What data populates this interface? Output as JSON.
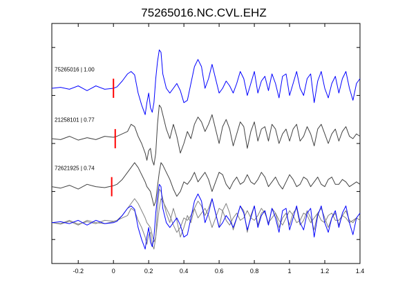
{
  "chart_data": {
    "type": "line",
    "title": "75265016.NC.CVL.EHZ",
    "xlabel": "",
    "ylabel": "",
    "xlim": [
      -0.35,
      1.4
    ],
    "xticks": [
      -0.2,
      0,
      0.2,
      0.4,
      0.6,
      0.8,
      1,
      1.2,
      1.4
    ],
    "xtick_labels": [
      "-0.2",
      "0",
      "0.2",
      "0.4",
      "0.6",
      "0.8",
      "1",
      "1.2",
      "1.4"
    ],
    "ylim": [
      -0.5,
      4.5
    ],
    "yticks": [
      0,
      1,
      2,
      3,
      4
    ],
    "grid": false,
    "legend": "none",
    "colors": {
      "blue": "#0000ff",
      "gray": "#404040",
      "stack_gray": "#808080",
      "pick": "#ff0000",
      "axis": "#000000"
    },
    "pick_half_height": 0.2,
    "series": [
      {
        "name": "75265016 | 1.00",
        "color": "#0000ff",
        "offset": 3.15,
        "pick_time": 0.0,
        "x": [
          -0.35,
          -0.3,
          -0.25,
          -0.2,
          -0.15,
          -0.1,
          -0.05,
          0.0,
          0.02,
          0.05,
          0.08,
          0.1,
          0.12,
          0.14,
          0.16,
          0.18,
          0.19,
          0.2,
          0.21,
          0.22,
          0.23,
          0.24,
          0.25,
          0.26,
          0.27,
          0.28,
          0.3,
          0.32,
          0.34,
          0.36,
          0.38,
          0.4,
          0.42,
          0.44,
          0.46,
          0.48,
          0.5,
          0.52,
          0.54,
          0.56,
          0.58,
          0.6,
          0.62,
          0.64,
          0.66,
          0.68,
          0.7,
          0.72,
          0.74,
          0.76,
          0.78,
          0.8,
          0.82,
          0.84,
          0.86,
          0.88,
          0.9,
          0.92,
          0.94,
          0.96,
          0.98,
          1.0,
          1.02,
          1.04,
          1.06,
          1.08,
          1.1,
          1.12,
          1.14,
          1.16,
          1.18,
          1.2,
          1.22,
          1.24,
          1.26,
          1.28,
          1.3,
          1.32,
          1.34,
          1.36,
          1.38,
          1.4
        ],
        "y": [
          0,
          0.02,
          -0.02,
          0.05,
          -0.05,
          0.05,
          -0.02,
          0,
          0.03,
          0.15,
          0.3,
          0.35,
          0.28,
          -0.1,
          -0.35,
          -0.55,
          -0.3,
          -0.1,
          -0.4,
          -0.5,
          -0.3,
          0.2,
          0.55,
          0.8,
          0.75,
          0.3,
          0.0,
          -0.1,
          0.0,
          0.1,
          -0.05,
          -0.3,
          -0.25,
          0.1,
          0.45,
          0.6,
          0.45,
          0.0,
          0.2,
          0.5,
          0.2,
          -0.1,
          0.0,
          0.15,
          0.05,
          -0.1,
          0.1,
          0.35,
          0.2,
          -0.15,
          0.1,
          0.35,
          -0.1,
          0.15,
          0.25,
          -0.05,
          0.3,
          0.1,
          -0.2,
          0.25,
          0.3,
          -0.15,
          0.1,
          0.35,
          0.0,
          -0.15,
          0.2,
          0.3,
          -0.3,
          0.15,
          0.35,
          0.0,
          -0.2,
          0.1,
          0.25,
          -0.1,
          0.2,
          0.35,
          0.0,
          -0.25,
          0.1,
          0.2
        ]
      },
      {
        "name": "21258101 | 0.77",
        "color": "#404040",
        "offset": 2.1,
        "pick_time": 0.01,
        "x": [
          -0.35,
          -0.3,
          -0.25,
          -0.2,
          -0.15,
          -0.1,
          -0.05,
          0.0,
          0.02,
          0.05,
          0.08,
          0.1,
          0.12,
          0.14,
          0.16,
          0.18,
          0.19,
          0.2,
          0.21,
          0.22,
          0.23,
          0.24,
          0.25,
          0.26,
          0.27,
          0.28,
          0.3,
          0.32,
          0.34,
          0.36,
          0.38,
          0.4,
          0.42,
          0.44,
          0.46,
          0.48,
          0.5,
          0.52,
          0.54,
          0.56,
          0.58,
          0.6,
          0.62,
          0.64,
          0.66,
          0.68,
          0.7,
          0.72,
          0.74,
          0.76,
          0.78,
          0.8,
          0.82,
          0.84,
          0.86,
          0.88,
          0.9,
          0.92,
          0.94,
          0.96,
          0.98,
          1.0,
          1.02,
          1.04,
          1.06,
          1.08,
          1.1,
          1.12,
          1.14,
          1.16,
          1.18,
          1.2,
          1.22,
          1.24,
          1.26,
          1.28,
          1.3,
          1.32,
          1.34,
          1.36,
          1.38,
          1.4
        ],
        "y": [
          0,
          -0.02,
          0.05,
          -0.03,
          0.02,
          -0.02,
          0.05,
          0.03,
          0.05,
          0.1,
          0.15,
          0.3,
          0.25,
          0.05,
          -0.1,
          -0.3,
          -0.45,
          -0.25,
          -0.2,
          -0.45,
          -0.55,
          -0.3,
          0.3,
          0.7,
          0.65,
          0.5,
          0.2,
          0.0,
          0.3,
          0.05,
          -0.3,
          -0.1,
          0.15,
          0.0,
          0.3,
          0.45,
          0.35,
          0.15,
          0.3,
          0.5,
          0.2,
          -0.1,
          0.25,
          0.4,
          0.2,
          -0.15,
          0.1,
          0.35,
          0.25,
          -0.2,
          0.15,
          0.35,
          -0.05,
          0.2,
          0.25,
          -0.05,
          0.3,
          0.2,
          -0.1,
          0.1,
          0.2,
          -0.05,
          0.2,
          0.3,
          -0.05,
          0.05,
          0.25,
          0.1,
          -0.15,
          0.2,
          0.3,
          0.1,
          -0.1,
          0.1,
          0.2,
          -0.05,
          0.15,
          0.25,
          0.05,
          0.0,
          0.1,
          0.05
        ]
      },
      {
        "name": "72621925 | 0.74",
        "color": "#404040",
        "offset": 1.1,
        "pick_time": -0.01,
        "x": [
          -0.35,
          -0.3,
          -0.25,
          -0.2,
          -0.15,
          -0.1,
          -0.05,
          0.0,
          0.02,
          0.05,
          0.08,
          0.1,
          0.12,
          0.14,
          0.16,
          0.18,
          0.19,
          0.2,
          0.21,
          0.22,
          0.23,
          0.24,
          0.25,
          0.26,
          0.27,
          0.28,
          0.3,
          0.32,
          0.34,
          0.36,
          0.38,
          0.4,
          0.42,
          0.44,
          0.46,
          0.48,
          0.5,
          0.52,
          0.54,
          0.56,
          0.58,
          0.6,
          0.62,
          0.64,
          0.66,
          0.68,
          0.7,
          0.72,
          0.74,
          0.76,
          0.78,
          0.8,
          0.82,
          0.84,
          0.86,
          0.88,
          0.9,
          0.92,
          0.94,
          0.96,
          0.98,
          1.0,
          1.02,
          1.04,
          1.06,
          1.08,
          1.1,
          1.12,
          1.14,
          1.16,
          1.18,
          1.2,
          1.22,
          1.24,
          1.26,
          1.28,
          1.3,
          1.32,
          1.34,
          1.36,
          1.38,
          1.4
        ],
        "y": [
          0,
          -0.03,
          0.03,
          -0.05,
          0.05,
          0.0,
          -0.02,
          0.02,
          0.05,
          0.15,
          0.3,
          0.4,
          0.5,
          0.4,
          0.25,
          0.1,
          0.0,
          -0.05,
          -0.1,
          -0.25,
          -0.4,
          -0.3,
          0.0,
          0.3,
          0.5,
          0.45,
          0.3,
          0.15,
          -0.05,
          -0.2,
          -0.1,
          0.1,
          0.05,
          0.15,
          0.3,
          0.1,
          0.2,
          0.3,
          0.15,
          -0.1,
          0.1,
          0.3,
          0.25,
          0.05,
          -0.05,
          0.1,
          0.2,
          0.05,
          0.1,
          0.25,
          0.1,
          0.05,
          0.15,
          0.3,
          0.2,
          0.0,
          0.1,
          0.2,
          0.05,
          -0.05,
          0.1,
          0.25,
          0.15,
          0.0,
          0.05,
          0.2,
          0.15,
          0.0,
          0.1,
          0.2,
          0.05,
          0.0,
          0.15,
          0.2,
          0.05,
          0.05,
          0.15,
          0.1,
          0.0,
          0.05,
          0.1,
          0.05
        ]
      }
    ],
    "stack": {
      "offset": 0.35,
      "series": [
        {
          "color": "#0000ff",
          "x": [
            -0.35,
            -0.3,
            -0.25,
            -0.2,
            -0.15,
            -0.1,
            -0.05,
            0.0,
            0.02,
            0.05,
            0.08,
            0.1,
            0.12,
            0.14,
            0.16,
            0.18,
            0.19,
            0.2,
            0.21,
            0.22,
            0.23,
            0.24,
            0.25,
            0.26,
            0.27,
            0.28,
            0.3,
            0.32,
            0.34,
            0.36,
            0.38,
            0.4,
            0.42,
            0.44,
            0.46,
            0.48,
            0.5,
            0.52,
            0.54,
            0.56,
            0.58,
            0.6,
            0.62,
            0.64,
            0.66,
            0.68,
            0.7,
            0.72,
            0.74,
            0.76,
            0.78,
            0.8,
            0.82,
            0.84,
            0.86,
            0.88,
            0.9,
            0.92,
            0.94,
            0.96,
            0.98,
            1.0,
            1.02,
            1.04,
            1.06,
            1.08,
            1.1,
            1.12,
            1.14,
            1.16,
            1.18,
            1.2,
            1.22,
            1.24,
            1.26,
            1.28,
            1.3,
            1.32,
            1.34,
            1.36,
            1.38,
            1.4
          ],
          "y": [
            0,
            0.02,
            -0.02,
            0.05,
            -0.05,
            0.05,
            -0.02,
            0,
            0.03,
            0.15,
            0.3,
            0.35,
            0.28,
            -0.1,
            -0.35,
            -0.55,
            -0.3,
            -0.1,
            -0.4,
            -0.5,
            -0.3,
            0.2,
            0.55,
            0.8,
            0.75,
            0.3,
            0.0,
            -0.1,
            0.0,
            0.1,
            -0.05,
            -0.3,
            -0.25,
            0.1,
            0.45,
            0.6,
            0.45,
            0.0,
            0.2,
            0.5,
            0.2,
            -0.1,
            0.0,
            0.15,
            0.05,
            -0.1,
            0.1,
            0.35,
            0.2,
            -0.15,
            0.1,
            0.35,
            -0.1,
            0.15,
            0.25,
            -0.05,
            0.3,
            0.1,
            -0.2,
            0.25,
            0.3,
            -0.15,
            0.1,
            0.35,
            0.0,
            -0.15,
            0.2,
            0.3,
            -0.3,
            0.15,
            0.35,
            0.0,
            -0.2,
            0.1,
            0.25,
            -0.1,
            0.2,
            0.35,
            0.0,
            -0.25,
            0.1,
            0.2
          ]
        },
        {
          "color": "#808080",
          "x": [
            -0.35,
            -0.3,
            -0.25,
            -0.2,
            -0.15,
            -0.1,
            -0.05,
            0.0,
            0.02,
            0.05,
            0.08,
            0.1,
            0.12,
            0.14,
            0.16,
            0.18,
            0.19,
            0.2,
            0.21,
            0.22,
            0.23,
            0.24,
            0.25,
            0.26,
            0.27,
            0.28,
            0.3,
            0.32,
            0.34,
            0.36,
            0.38,
            0.4,
            0.42,
            0.44,
            0.46,
            0.48,
            0.5,
            0.52,
            0.54,
            0.56,
            0.58,
            0.6,
            0.62,
            0.64,
            0.66,
            0.68,
            0.7,
            0.72,
            0.74,
            0.76,
            0.78,
            0.8,
            0.82,
            0.84,
            0.86,
            0.88,
            0.9,
            0.92,
            0.94,
            0.96,
            0.98,
            1.0,
            1.02,
            1.04,
            1.06,
            1.08,
            1.1,
            1.12,
            1.14,
            1.16,
            1.18,
            1.2,
            1.22,
            1.24,
            1.26,
            1.28,
            1.3,
            1.32,
            1.34,
            1.36,
            1.38,
            1.4
          ],
          "y": [
            0,
            -0.02,
            0.05,
            -0.03,
            0.02,
            -0.02,
            0.05,
            0.03,
            0.05,
            0.1,
            0.15,
            0.3,
            0.25,
            0.05,
            -0.1,
            -0.3,
            -0.45,
            -0.25,
            -0.2,
            -0.45,
            -0.55,
            -0.3,
            0.3,
            0.7,
            0.65,
            0.5,
            0.2,
            0.0,
            0.3,
            0.05,
            -0.3,
            -0.1,
            0.15,
            0.0,
            0.3,
            0.45,
            0.35,
            0.15,
            0.3,
            0.5,
            0.2,
            -0.1,
            0.25,
            0.4,
            0.2,
            -0.15,
            0.1,
            0.35,
            0.25,
            -0.2,
            0.15,
            0.35,
            -0.05,
            0.2,
            0.25,
            -0.05,
            0.3,
            0.2,
            -0.1,
            0.1,
            0.2,
            -0.05,
            0.2,
            0.3,
            -0.05,
            0.05,
            0.25,
            0.1,
            -0.15,
            0.2,
            0.3,
            0.1,
            -0.1,
            0.1,
            0.2,
            -0.05,
            0.15,
            0.25,
            0.05,
            0.0,
            0.1,
            0.05
          ]
        },
        {
          "color": "#808080",
          "x": [
            -0.35,
            -0.3,
            -0.25,
            -0.2,
            -0.15,
            -0.1,
            -0.05,
            0.0,
            0.02,
            0.05,
            0.08,
            0.1,
            0.12,
            0.14,
            0.16,
            0.18,
            0.19,
            0.2,
            0.21,
            0.22,
            0.23,
            0.24,
            0.25,
            0.26,
            0.27,
            0.28,
            0.3,
            0.32,
            0.34,
            0.36,
            0.38,
            0.4,
            0.42,
            0.44,
            0.46,
            0.48,
            0.5,
            0.52,
            0.54,
            0.56,
            0.58,
            0.6,
            0.62,
            0.64,
            0.66,
            0.68,
            0.7,
            0.72,
            0.74,
            0.76,
            0.78,
            0.8,
            0.82,
            0.84,
            0.86,
            0.88,
            0.9,
            0.92,
            0.94,
            0.96,
            0.98,
            1.0,
            1.02,
            1.04,
            1.06,
            1.08,
            1.1,
            1.12,
            1.14,
            1.16,
            1.18,
            1.2,
            1.22,
            1.24,
            1.26,
            1.28,
            1.3,
            1.32,
            1.34,
            1.36,
            1.38,
            1.4
          ],
          "y": [
            0,
            -0.03,
            0.03,
            -0.05,
            0.05,
            0.0,
            -0.02,
            0.02,
            0.05,
            0.15,
            0.3,
            0.4,
            0.5,
            0.4,
            0.25,
            0.1,
            0.0,
            -0.05,
            -0.1,
            -0.25,
            -0.4,
            -0.3,
            0.0,
            0.3,
            0.5,
            0.45,
            0.3,
            0.15,
            -0.05,
            -0.2,
            -0.1,
            0.1,
            0.05,
            0.15,
            0.3,
            0.1,
            0.2,
            0.3,
            0.15,
            -0.1,
            0.1,
            0.3,
            0.25,
            0.05,
            -0.05,
            0.1,
            0.2,
            0.05,
            0.1,
            0.25,
            0.1,
            0.05,
            0.15,
            0.3,
            0.2,
            0.0,
            0.1,
            0.2,
            0.05,
            -0.05,
            0.1,
            0.25,
            0.15,
            0.0,
            0.05,
            0.2,
            0.15,
            0.0,
            0.1,
            0.2,
            0.05,
            0.0,
            0.15,
            0.2,
            0.05,
            0.05,
            0.15,
            0.1,
            0.0,
            0.05,
            0.1,
            0.05
          ]
        }
      ]
    }
  }
}
